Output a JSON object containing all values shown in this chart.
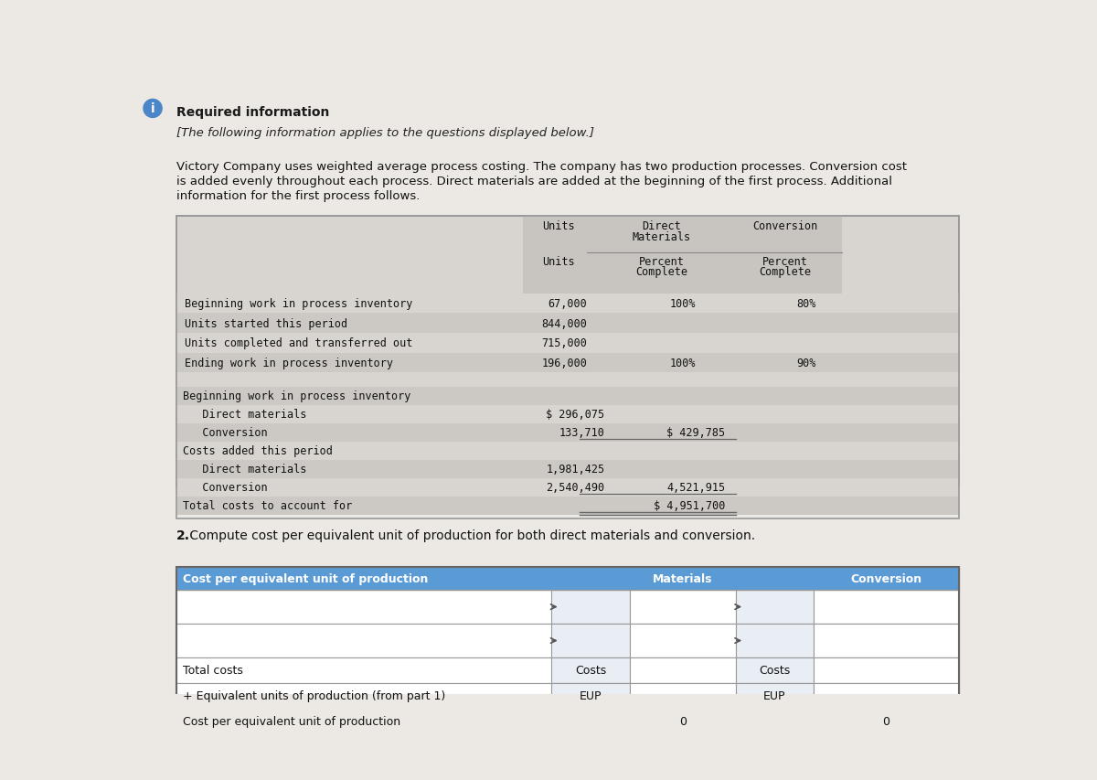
{
  "page_bg": "#ece9e4",
  "title1": "Required information",
  "title2": "[The following information applies to the questions displayed below.]",
  "body_lines": [
    "Victory Company uses weighted average process costing. The company has two production processes. Conversion cost",
    "is added evenly throughout each process. Direct materials are added at the beginning of the first process. Additional",
    "information for the first process follows."
  ],
  "table_bg": "#d8d5d0",
  "table_bg_alt": "#ccc9c4",
  "table_border": "#999999",
  "section2_title_bold": "2.",
  "section2_title_rest": " Compute cost per equivalent unit of production for both direct materials and conversion.",
  "header_blue": "#5b9bd5",
  "yellow_fill": "#f2ef9e",
  "white_fill": "#ffffff",
  "row1_data": [
    "Beginning work in process inventory",
    "67,000",
    "100%",
    "80%"
  ],
  "row2_data": [
    "Units started this period",
    "844,000",
    "",
    ""
  ],
  "row3_data": [
    "Units completed and transferred out",
    "715,000",
    "",
    ""
  ],
  "row4_data": [
    "Ending work in process inventory",
    "196,000",
    "100%",
    "90%"
  ],
  "cost_rows": [
    [
      "Beginning work in process inventory",
      "",
      ""
    ],
    [
      "   Direct materials",
      "$ 296,075",
      ""
    ],
    [
      "   Conversion",
      "133,710",
      "$ 429,785"
    ],
    [
      "Costs added this period",
      "",
      ""
    ],
    [
      "   Direct materials",
      "1,981,425",
      ""
    ],
    [
      "   Conversion",
      "2,540,490",
      "4,521,915"
    ],
    [
      "Total costs to account for",
      "",
      "$ 4,951,700"
    ]
  ],
  "t3_col1_label": "Cost per equivalent unit of production",
  "t3_mat_label": "Materials",
  "t3_conv_label": "Conversion",
  "t3_row_labels": [
    "",
    "",
    "Total costs",
    "+ Equivalent units of production (from part 1)",
    "Cost per equivalent unit of production"
  ],
  "t3_mid_labels": [
    "",
    "",
    "Costs",
    "EUP",
    ""
  ],
  "t3_mid2_labels": [
    "",
    "",
    "Costs",
    "EUP",
    ""
  ],
  "t3_val1": [
    "",
    "",
    "",
    "",
    "0"
  ],
  "t3_val2": [
    "",
    "",
    "",
    "",
    "0"
  ]
}
